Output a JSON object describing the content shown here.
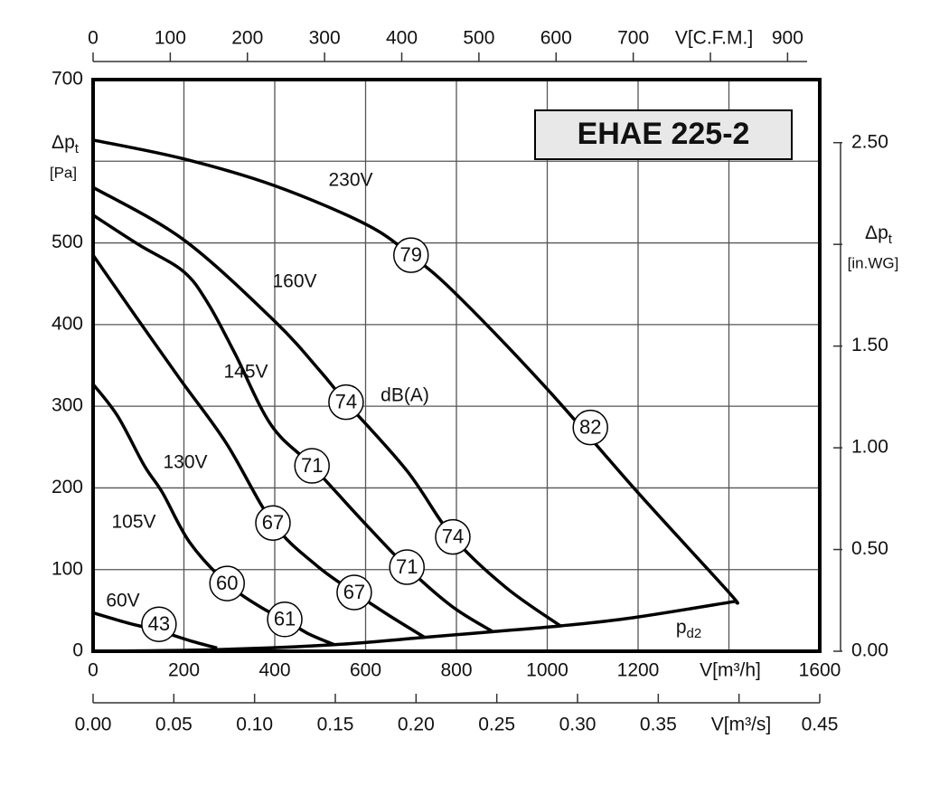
{
  "chart_data": {
    "type": "line",
    "title": "EHAE 225-2",
    "x_label": "V[m³/h]",
    "xlim": [
      0,
      1600
    ],
    "xticks": [
      0,
      200,
      400,
      600,
      800,
      1000,
      1200,
      {
        "value": 1400,
        "label": null
      },
      1600
    ],
    "y_label": "Δp",
    "y_label_sub": "t",
    "y_unit": "[Pa]",
    "ylim": [
      0,
      700
    ],
    "yticks": [
      0,
      100,
      200,
      300,
      400,
      500,
      {
        "value": 600,
        "label": null
      },
      700
    ],
    "y2_label": "Δp",
    "y2_label_sub": "t",
    "y2_unit": "[in.WG]",
    "y2lim": [
      0,
      2.81
    ],
    "y2ticks": [
      {
        "value": 0,
        "label": "0.00"
      },
      {
        "value": 0.5,
        "label": "0.50"
      },
      {
        "value": 1,
        "label": "1.00"
      },
      {
        "value": 1.5,
        "label": "1.50"
      },
      {
        "value": 2,
        "label": null
      },
      {
        "value": 2.5,
        "label": "2.50"
      }
    ],
    "x2_label": "V[C.F.M.]",
    "x2lim": [
      0,
      941.7
    ],
    "x2ticks": [
      0,
      100,
      200,
      300,
      400,
      500,
      600,
      700,
      {
        "value": 800,
        "label": null
      },
      900
    ],
    "x3_label": "V[m³/s]",
    "x3lim": [
      0,
      0.45
    ],
    "x3ticks": [
      {
        "value": 0,
        "label": "0.00"
      },
      {
        "value": 0.05,
        "label": "0.05"
      },
      {
        "value": 0.1,
        "label": "0.10"
      },
      {
        "value": 0.15,
        "label": "0.15"
      },
      {
        "value": 0.2,
        "label": "0.20"
      },
      {
        "value": 0.25,
        "label": "0.25"
      },
      {
        "value": 0.3,
        "label": "0.30"
      },
      {
        "value": 0.35,
        "label": "0.35"
      },
      {
        "value": 0.4,
        "label": null
      },
      {
        "value": 0.45,
        "label": "0.45"
      }
    ],
    "grid": true,
    "series": [
      {
        "name": "230V",
        "color": "#000000",
        "x": [
          0,
          199,
          400,
          600,
          700,
          800,
          1000,
          1200,
          1400,
          1413
        ],
        "values": [
          626,
          603,
          570,
          523,
          485,
          437,
          321,
          194,
          72,
          61
        ]
      },
      {
        "name": "160V",
        "color": "#000000",
        "x": [
          0,
          199,
          400,
          500,
          557,
          691,
          792,
          909,
          1029
        ],
        "values": [
          568,
          504,
          404,
          343,
          305,
          221,
          140,
          78,
          31
        ]
      },
      {
        "name": "145V",
        "color": "#000000",
        "x": [
          0,
          100,
          199,
          253,
          312,
          392,
          482,
          591,
          691,
          790,
          880
        ],
        "values": [
          534,
          498,
          465,
          426,
          365,
          277,
          227,
          161,
          103,
          55,
          24
        ]
      },
      {
        "name": "130V",
        "color": "#000000",
        "x": [
          0,
          94,
          193,
          293,
          396,
          492,
          575,
          651,
          730
        ],
        "values": [
          485,
          410,
          332,
          255,
          157,
          105,
          72,
          44,
          17
        ]
      },
      {
        "name": "105V",
        "color": "#000000",
        "x": [
          0,
          54,
          113,
          153,
          213,
          295,
          372,
          422,
          472,
          531
        ],
        "values": [
          327,
          288,
          227,
          194,
          133,
          83,
          53,
          39,
          22,
          8
        ]
      },
      {
        "name": "60V",
        "color": "#000000",
        "x": [
          0,
          74,
          145,
          213,
          273
        ],
        "values": [
          47,
          35,
          25,
          13,
          4
        ]
      },
      {
        "name": "p",
        "name_sub": "d2",
        "color": "#000000",
        "x": [
          0,
          273,
          531,
          730,
          880,
          1029,
          1188,
          1413
        ],
        "values": [
          0,
          2,
          8,
          17,
          24,
          31,
          41,
          61
        ]
      }
    ],
    "noise_unit": "dB(A)",
    "noise_points": [
      {
        "x": 700,
        "y": 485,
        "value": 79
      },
      {
        "x": 1095,
        "y": 274,
        "value": 82
      },
      {
        "x": 557,
        "y": 305,
        "value": 74
      },
      {
        "x": 792,
        "y": 140,
        "value": 74
      },
      {
        "x": 482,
        "y": 227,
        "value": 71
      },
      {
        "x": 691,
        "y": 103,
        "value": 71
      },
      {
        "x": 396,
        "y": 157,
        "value": 67
      },
      {
        "x": 575,
        "y": 72,
        "value": 67
      },
      {
        "x": 295,
        "y": 83,
        "value": 60
      },
      {
        "x": 422,
        "y": 39,
        "value": 61
      },
      {
        "x": 145,
        "y": 33,
        "value": 43
      }
    ]
  }
}
